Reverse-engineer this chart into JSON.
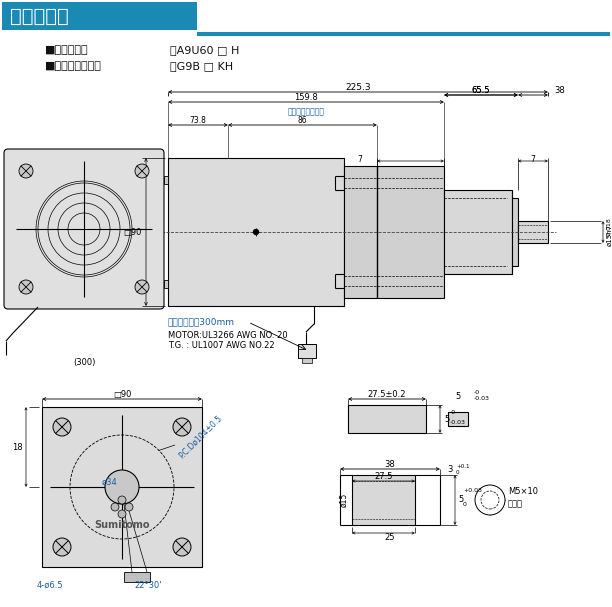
{
  "title": "ギヤモータ",
  "title_bg": "#1a8ab5",
  "title_line_color": "#1a8ab5",
  "title_text_color": "#ffffff",
  "line_color": "#000000",
  "fill_light": "#e8e8e8",
  "fill_med": "#d8d8d8",
  "bg_color": "#ffffff",
  "blue_text": "#1a5fa0",
  "motor_type_label": "■モータ形式",
  "motor_type_value": "：A9U60 □ H",
  "gear_type_label": "■ギヤヘッド形式",
  "gear_type_value": "：G9B □ KH",
  "dim_225_3": "225.3",
  "dim_159_8": "159.8",
  "dim_65_5": "65.5",
  "dim_38a": "38",
  "dim_motor_len": "（モータ部長さ）",
  "dim_73_8": "73.8",
  "dim_86": "86",
  "dim_7a": "7",
  "dim_7b": "7",
  "dim_sq90_side": "□90",
  "dim_shaft_label": "ø15h7",
  "dim_shaft_tol": "-0.018",
  "note1": "リード線長さ300mm",
  "note2": "MOTOR:UL3266 AWG NO. 20",
  "note3": "T.G. : UL1007 AWG NO.22",
  "note_300": "(300)",
  "dim_sq90": "□90",
  "dim_pcd": "P.C.Dø104±0.5",
  "dim_34": "ø34",
  "dim_18": "18",
  "dim_4hole": "4-ø6.5",
  "dim_angle": "22°30'",
  "dim_27_5_pm": "27.5±0.2",
  "dim_5a": "5",
  "dim_5a_tol": "-0\n-0.03",
  "dim_5b_label": "5",
  "dim_5b_tol": "-0\n-0.03",
  "dim_38b": "38",
  "dim_27_5b": "27.5",
  "dim_15": "ø15",
  "dim_5c": "5",
  "dim_5c_tol": "+0.03\n0",
  "dim_3": "3",
  "dim_3_tol": "+0.1\n0",
  "dim_25": "25",
  "dim_m5": "M5×10",
  "dim_tap": "タップ",
  "sumitomo_text": "Sumitomo"
}
